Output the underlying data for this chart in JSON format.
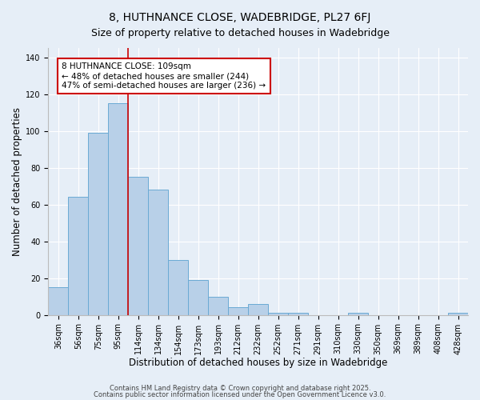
{
  "title": "8, HUTHNANCE CLOSE, WADEBRIDGE, PL27 6FJ",
  "subtitle": "Size of property relative to detached houses in Wadebridge",
  "bar_labels": [
    "36sqm",
    "56sqm",
    "75sqm",
    "95sqm",
    "114sqm",
    "134sqm",
    "154sqm",
    "173sqm",
    "193sqm",
    "212sqm",
    "232sqm",
    "252sqm",
    "271sqm",
    "291sqm",
    "310sqm",
    "330sqm",
    "350sqm",
    "369sqm",
    "389sqm",
    "408sqm",
    "428sqm"
  ],
  "bar_values": [
    15,
    64,
    99,
    115,
    75,
    68,
    30,
    19,
    10,
    4,
    6,
    1,
    1,
    0,
    0,
    1,
    0,
    0,
    0,
    0,
    1
  ],
  "bar_color": "#b8d0e8",
  "bar_edge_color": "#6aaad4",
  "bar_width": 1.0,
  "vline_bin": 3,
  "vline_color": "#cc0000",
  "annotation_line1": "8 HUTHNANCE CLOSE: 109sqm",
  "annotation_line2": "← 48% of detached houses are smaller (244)",
  "annotation_line3": "47% of semi-detached houses are larger (236) →",
  "xlabel": "Distribution of detached houses by size in Wadebridge",
  "ylabel": "Number of detached properties",
  "ylim": [
    0,
    145
  ],
  "yticks": [
    0,
    20,
    40,
    60,
    80,
    100,
    120,
    140
  ],
  "footer1": "Contains HM Land Registry data © Crown copyright and database right 2025.",
  "footer2": "Contains public sector information licensed under the Open Government Licence v3.0.",
  "bg_color": "#e6eef7",
  "plot_bg_color": "#e6eef7",
  "title_fontsize": 10,
  "subtitle_fontsize": 9,
  "axis_label_fontsize": 8.5,
  "tick_fontsize": 7,
  "footer_fontsize": 6,
  "annotation_fontsize": 7.5
}
